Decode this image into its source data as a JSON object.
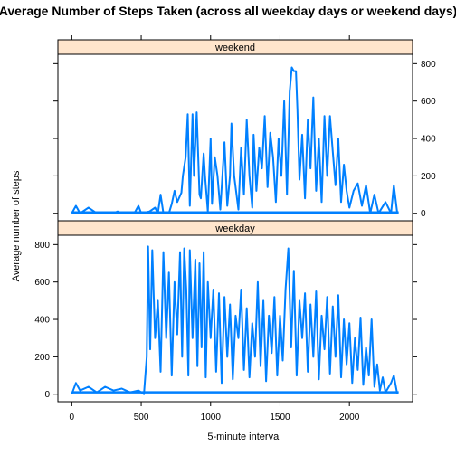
{
  "chart_data": {
    "type": "line",
    "layout": "lattice-2-panel",
    "title": "Average Number of Steps Taken (across all weekday days or weekend days)",
    "xlabel": "5-minute interval",
    "ylabel": "Average number of steps",
    "xlim": [
      -100,
      2455
    ],
    "ylim": [
      -40,
      850
    ],
    "x_ticks": [
      0,
      500,
      1000,
      1500,
      2000
    ],
    "y_ticks": [
      0,
      200,
      400,
      600,
      800
    ],
    "line_color": "#0080ff",
    "strip_color": "#ffe5cc",
    "panels": [
      {
        "name": "weekend",
        "strip_label": "weekend",
        "y_tick_side": "right",
        "points": [
          [
            0,
            0
          ],
          [
            30,
            40
          ],
          [
            60,
            0
          ],
          [
            120,
            30
          ],
          [
            180,
            0
          ],
          [
            300,
            0
          ],
          [
            330,
            10
          ],
          [
            360,
            0
          ],
          [
            450,
            0
          ],
          [
            480,
            40
          ],
          [
            500,
            0
          ],
          [
            560,
            10
          ],
          [
            600,
            30
          ],
          [
            620,
            0
          ],
          [
            640,
            100
          ],
          [
            660,
            0
          ],
          [
            700,
            0
          ],
          [
            720,
            50
          ],
          [
            740,
            120
          ],
          [
            760,
            60
          ],
          [
            790,
            110
          ],
          [
            800,
            200
          ],
          [
            820,
            300
          ],
          [
            835,
            530
          ],
          [
            850,
            40
          ],
          [
            870,
            530
          ],
          [
            880,
            200
          ],
          [
            900,
            540
          ],
          [
            920,
            100
          ],
          [
            930,
            80
          ],
          [
            950,
            320
          ],
          [
            960,
            200
          ],
          [
            980,
            10
          ],
          [
            1000,
            400
          ],
          [
            1010,
            50
          ],
          [
            1030,
            300
          ],
          [
            1050,
            200
          ],
          [
            1070,
            20
          ],
          [
            1100,
            380
          ],
          [
            1120,
            40
          ],
          [
            1140,
            200
          ],
          [
            1150,
            480
          ],
          [
            1170,
            200
          ],
          [
            1200,
            20
          ],
          [
            1220,
            350
          ],
          [
            1240,
            100
          ],
          [
            1260,
            500
          ],
          [
            1280,
            200
          ],
          [
            1300,
            30
          ],
          [
            1310,
            420
          ],
          [
            1330,
            120
          ],
          [
            1350,
            350
          ],
          [
            1370,
            240
          ],
          [
            1390,
            520
          ],
          [
            1410,
            140
          ],
          [
            1430,
            430
          ],
          [
            1450,
            300
          ],
          [
            1470,
            60
          ],
          [
            1490,
            400
          ],
          [
            1510,
            200
          ],
          [
            1530,
            600
          ],
          [
            1550,
            100
          ],
          [
            1570,
            650
          ],
          [
            1585,
            780
          ],
          [
            1600,
            760
          ],
          [
            1615,
            760
          ],
          [
            1625,
            560
          ],
          [
            1640,
            180
          ],
          [
            1660,
            420
          ],
          [
            1680,
            80
          ],
          [
            1700,
            500
          ],
          [
            1720,
            240
          ],
          [
            1740,
            620
          ],
          [
            1760,
            120
          ],
          [
            1780,
            400
          ],
          [
            1800,
            60
          ],
          [
            1820,
            520
          ],
          [
            1840,
            200
          ],
          [
            1860,
            520
          ],
          [
            1880,
            330
          ],
          [
            1900,
            150
          ],
          [
            1920,
            400
          ],
          [
            1940,
            60
          ],
          [
            1960,
            260
          ],
          [
            1980,
            120
          ],
          [
            2000,
            30
          ],
          [
            2030,
            120
          ],
          [
            2060,
            160
          ],
          [
            2090,
            40
          ],
          [
            2120,
            150
          ],
          [
            2150,
            0
          ],
          [
            2180,
            100
          ],
          [
            2210,
            0
          ],
          [
            2260,
            60
          ],
          [
            2300,
            0
          ],
          [
            2320,
            150
          ],
          [
            2345,
            0
          ]
        ],
        "floor_y": 5
      },
      {
        "name": "weekday",
        "strip_label": "weekday",
        "y_tick_side": "left",
        "points": [
          [
            0,
            0
          ],
          [
            30,
            60
          ],
          [
            60,
            20
          ],
          [
            120,
            40
          ],
          [
            180,
            10
          ],
          [
            240,
            40
          ],
          [
            300,
            20
          ],
          [
            360,
            30
          ],
          [
            420,
            10
          ],
          [
            480,
            20
          ],
          [
            520,
            0
          ],
          [
            540,
            200
          ],
          [
            550,
            790
          ],
          [
            565,
            240
          ],
          [
            580,
            770
          ],
          [
            600,
            300
          ],
          [
            620,
            500
          ],
          [
            640,
            120
          ],
          [
            660,
            760
          ],
          [
            680,
            300
          ],
          [
            700,
            650
          ],
          [
            720,
            100
          ],
          [
            740,
            600
          ],
          [
            760,
            320
          ],
          [
            780,
            760
          ],
          [
            795,
            200
          ],
          [
            810,
            780
          ],
          [
            825,
            560
          ],
          [
            840,
            100
          ],
          [
            850,
            770
          ],
          [
            870,
            300
          ],
          [
            890,
            720
          ],
          [
            905,
            150
          ],
          [
            920,
            700
          ],
          [
            935,
            250
          ],
          [
            950,
            760
          ],
          [
            965,
            90
          ],
          [
            980,
            600
          ],
          [
            1000,
            300
          ],
          [
            1020,
            560
          ],
          [
            1040,
            120
          ],
          [
            1060,
            540
          ],
          [
            1080,
            60
          ],
          [
            1100,
            520
          ],
          [
            1120,
            200
          ],
          [
            1140,
            480
          ],
          [
            1160,
            80
          ],
          [
            1180,
            420
          ],
          [
            1200,
            300
          ],
          [
            1220,
            560
          ],
          [
            1240,
            130
          ],
          [
            1260,
            460
          ],
          [
            1280,
            90
          ],
          [
            1300,
            380
          ],
          [
            1320,
            200
          ],
          [
            1340,
            600
          ],
          [
            1360,
            150
          ],
          [
            1380,
            500
          ],
          [
            1400,
            70
          ],
          [
            1420,
            420
          ],
          [
            1440,
            220
          ],
          [
            1460,
            520
          ],
          [
            1480,
            100
          ],
          [
            1500,
            420
          ],
          [
            1520,
            180
          ],
          [
            1540,
            560
          ],
          [
            1560,
            780
          ],
          [
            1580,
            250
          ],
          [
            1600,
            660
          ],
          [
            1620,
            100
          ],
          [
            1640,
            500
          ],
          [
            1660,
            300
          ],
          [
            1680,
            540
          ],
          [
            1700,
            120
          ],
          [
            1720,
            480
          ],
          [
            1740,
            200
          ],
          [
            1760,
            550
          ],
          [
            1780,
            80
          ],
          [
            1800,
            420
          ],
          [
            1820,
            240
          ],
          [
            1840,
            520
          ],
          [
            1860,
            110
          ],
          [
            1880,
            470
          ],
          [
            1900,
            200
          ],
          [
            1920,
            530
          ],
          [
            1940,
            90
          ],
          [
            1960,
            400
          ],
          [
            1980,
            160
          ],
          [
            2000,
            380
          ],
          [
            2020,
            60
          ],
          [
            2040,
            300
          ],
          [
            2060,
            130
          ],
          [
            2080,
            410
          ],
          [
            2100,
            50
          ],
          [
            2120,
            250
          ],
          [
            2140,
            100
          ],
          [
            2160,
            400
          ],
          [
            2180,
            40
          ],
          [
            2200,
            160
          ],
          [
            2220,
            20
          ],
          [
            2240,
            90
          ],
          [
            2260,
            10
          ],
          [
            2300,
            60
          ],
          [
            2320,
            100
          ],
          [
            2345,
            0
          ]
        ],
        "floor_y": 10
      }
    ]
  }
}
